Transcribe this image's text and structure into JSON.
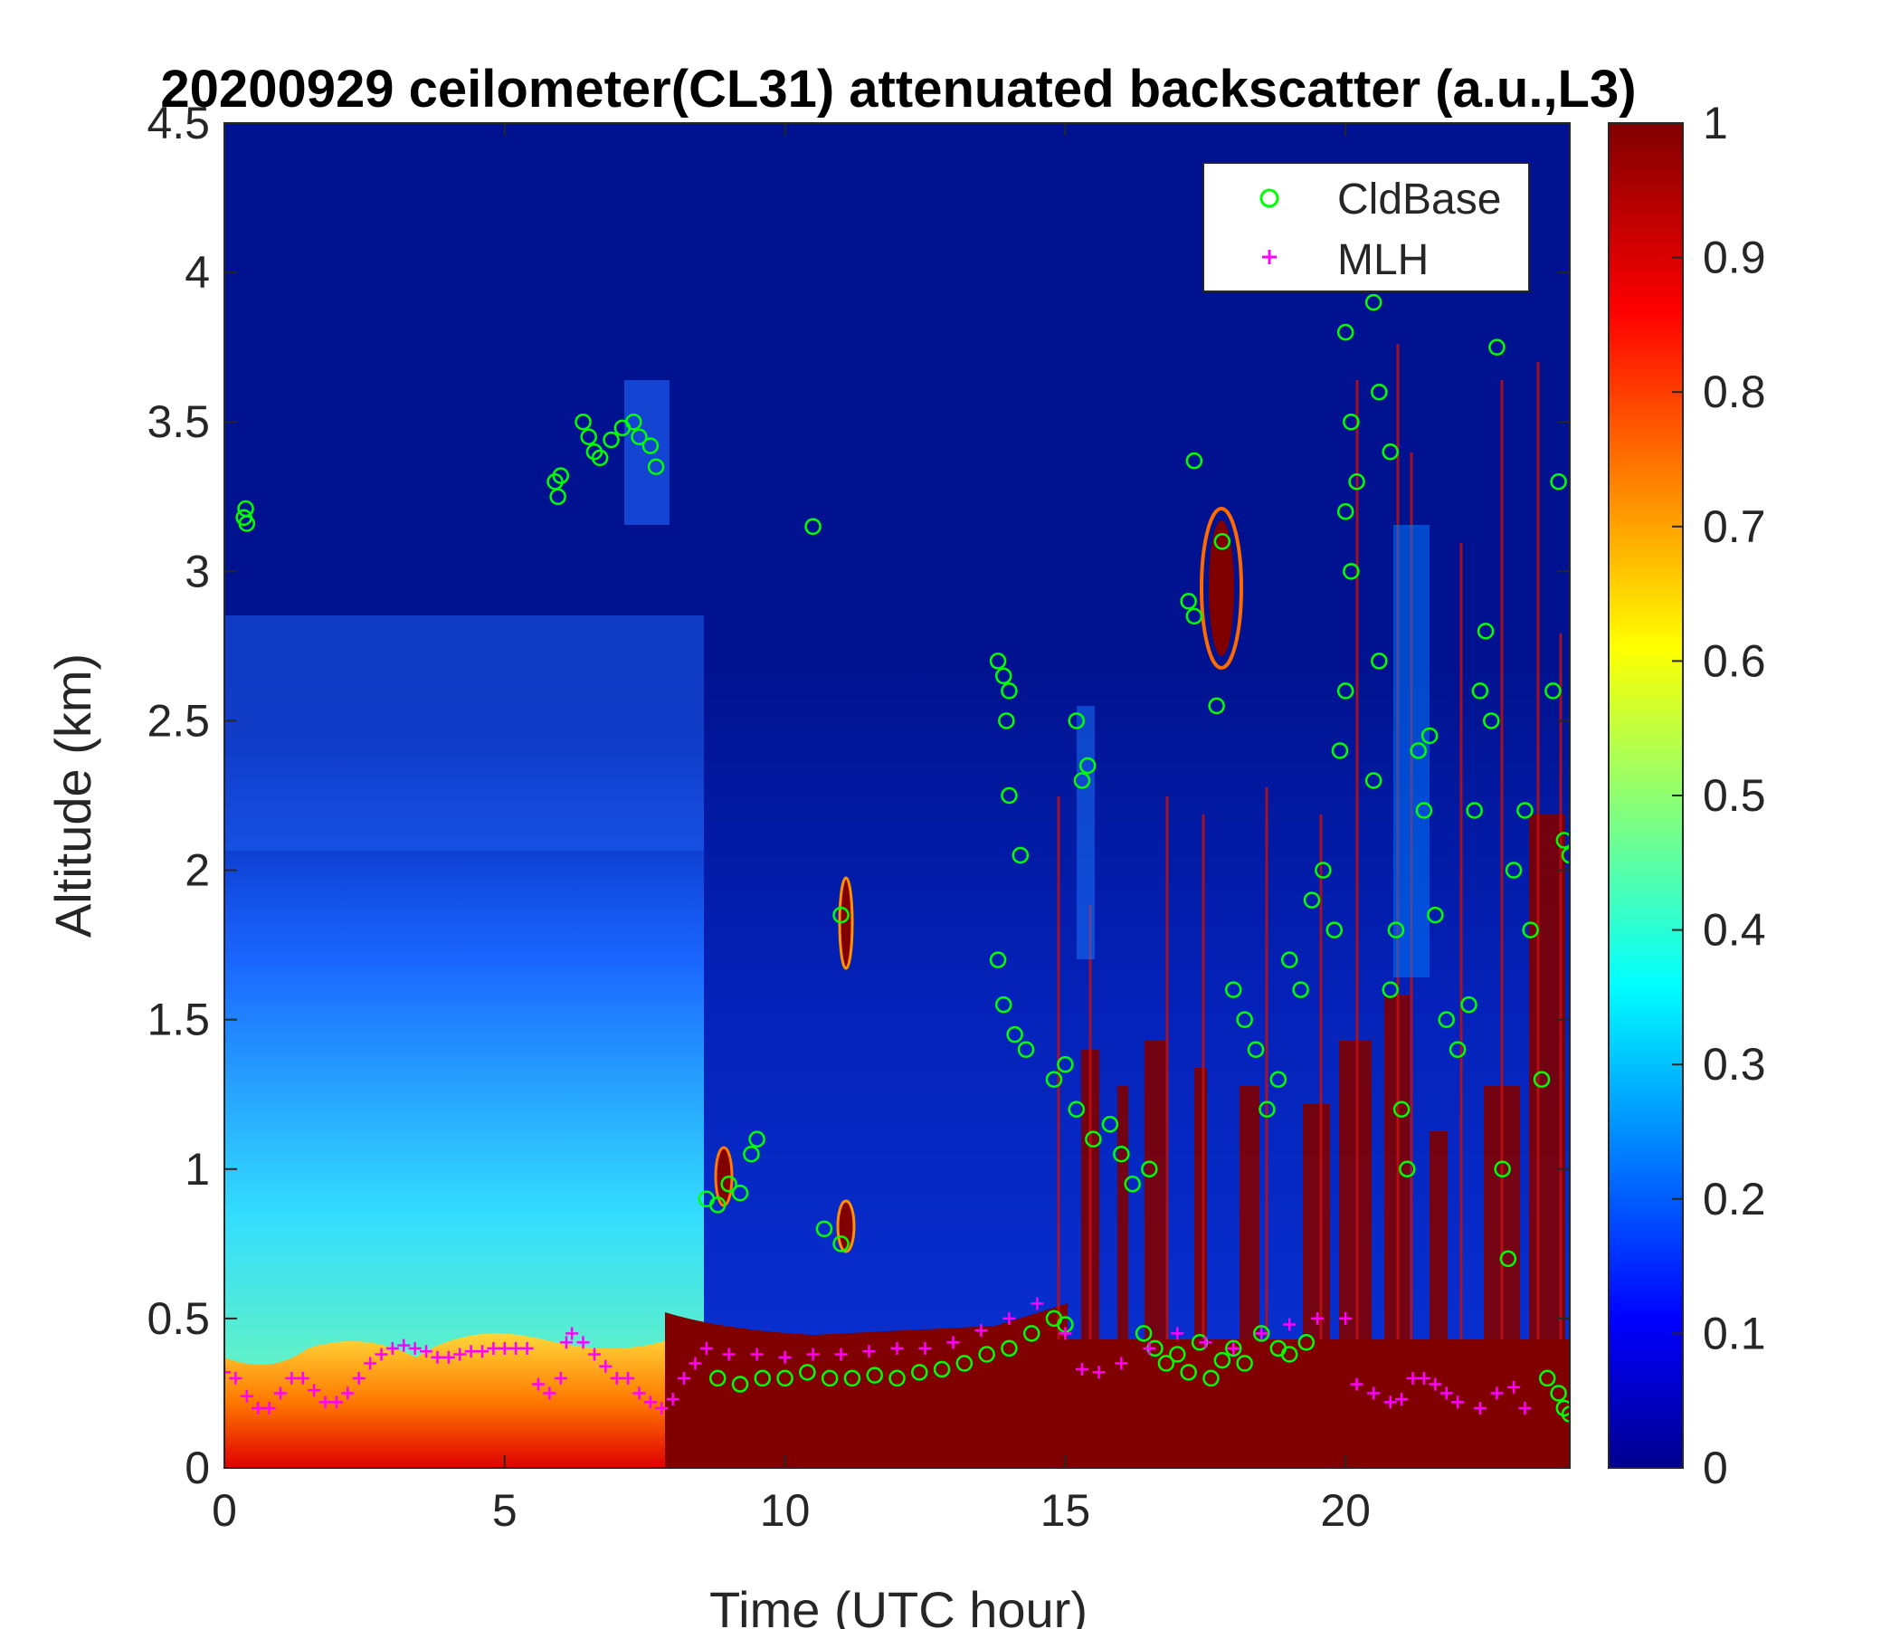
{
  "chart_data": {
    "type": "heatmap",
    "title": "20200929 ceilometer(CL31) attenuated backscatter (a.u.,L3)",
    "xlabel": "Time (UTC hour)",
    "ylabel": "Altitude (km)",
    "xlim": [
      0,
      24
    ],
    "ylim": [
      0,
      4.5
    ],
    "x_ticks": [
      "0",
      "5",
      "10",
      "15",
      "20"
    ],
    "y_ticks": [
      "0",
      "0.5",
      "1",
      "1.5",
      "2",
      "2.5",
      "3",
      "3.5",
      "4",
      "4.5"
    ],
    "colorbar": {
      "colormap": "jet",
      "range": [
        0,
        1
      ],
      "ticks": [
        "0",
        "0.1",
        "0.2",
        "0.3",
        "0.4",
        "0.5",
        "0.6",
        "0.7",
        "0.8",
        "0.9",
        "1"
      ]
    },
    "legend": {
      "placement": "top-right",
      "entries": [
        {
          "label": "CldBase",
          "marker": "circle",
          "color": "#00ff00"
        },
        {
          "label": "MLH",
          "marker": "plus",
          "color": "#ff00ff"
        }
      ]
    },
    "series": [
      {
        "name": "CldBase",
        "marker": "circle",
        "color": "#00ff00",
        "points": [
          [
            0.35,
            3.18
          ],
          [
            0.38,
            3.21
          ],
          [
            0.4,
            3.16
          ],
          [
            5.9,
            3.3
          ],
          [
            5.95,
            3.25
          ],
          [
            6.0,
            3.32
          ],
          [
            6.4,
            3.5
          ],
          [
            6.5,
            3.45
          ],
          [
            6.6,
            3.4
          ],
          [
            6.7,
            3.38
          ],
          [
            6.9,
            3.44
          ],
          [
            7.1,
            3.48
          ],
          [
            7.3,
            3.5
          ],
          [
            7.4,
            3.45
          ],
          [
            7.6,
            3.42
          ],
          [
            7.7,
            3.35
          ],
          [
            10.5,
            3.15
          ],
          [
            8.6,
            0.9
          ],
          [
            8.8,
            0.88
          ],
          [
            9.0,
            0.95
          ],
          [
            9.2,
            0.92
          ],
          [
            9.4,
            1.05
          ],
          [
            9.5,
            1.1
          ],
          [
            11.0,
            1.85
          ],
          [
            11.0,
            0.75
          ],
          [
            10.7,
            0.8
          ],
          [
            13.8,
            2.7
          ],
          [
            13.9,
            2.65
          ],
          [
            14.0,
            2.6
          ],
          [
            13.95,
            2.5
          ],
          [
            14.0,
            2.25
          ],
          [
            14.2,
            2.05
          ],
          [
            15.3,
            2.3
          ],
          [
            15.4,
            2.35
          ],
          [
            15.2,
            2.5
          ],
          [
            13.8,
            1.7
          ],
          [
            13.9,
            1.55
          ],
          [
            14.1,
            1.45
          ],
          [
            14.3,
            1.4
          ],
          [
            14.8,
            1.3
          ],
          [
            15.0,
            1.35
          ],
          [
            15.2,
            1.2
          ],
          [
            15.5,
            1.1
          ],
          [
            15.8,
            1.15
          ],
          [
            16.0,
            1.05
          ],
          [
            16.2,
            0.95
          ],
          [
            16.5,
            1.0
          ],
          [
            16.4,
            0.45
          ],
          [
            16.6,
            0.4
          ],
          [
            16.8,
            0.35
          ],
          [
            17.0,
            0.38
          ],
          [
            17.2,
            0.32
          ],
          [
            17.4,
            0.42
          ],
          [
            17.6,
            0.3
          ],
          [
            17.8,
            0.36
          ],
          [
            18.0,
            0.4
          ],
          [
            18.2,
            0.35
          ],
          [
            18.5,
            0.45
          ],
          [
            18.8,
            0.4
          ],
          [
            19.0,
            0.38
          ],
          [
            19.3,
            0.42
          ],
          [
            17.3,
            3.37
          ],
          [
            17.2,
            2.9
          ],
          [
            17.3,
            2.85
          ],
          [
            17.7,
            2.55
          ],
          [
            17.8,
            3.1
          ],
          [
            18.0,
            1.6
          ],
          [
            18.2,
            1.5
          ],
          [
            18.4,
            1.4
          ],
          [
            18.6,
            1.2
          ],
          [
            18.8,
            1.3
          ],
          [
            19.0,
            1.7
          ],
          [
            19.2,
            1.6
          ],
          [
            19.4,
            1.9
          ],
          [
            19.6,
            2.0
          ],
          [
            19.8,
            1.8
          ],
          [
            19.9,
            2.4
          ],
          [
            20.0,
            2.6
          ],
          [
            20.1,
            3.0
          ],
          [
            20.0,
            3.2
          ],
          [
            20.1,
            3.5
          ],
          [
            20.0,
            3.8
          ],
          [
            20.2,
            3.3
          ],
          [
            20.5,
            3.9
          ],
          [
            20.6,
            3.6
          ],
          [
            20.8,
            3.4
          ],
          [
            20.6,
            2.7
          ],
          [
            20.5,
            2.3
          ],
          [
            20.8,
            1.6
          ],
          [
            20.9,
            1.8
          ],
          [
            21.0,
            1.2
          ],
          [
            21.1,
            1.0
          ],
          [
            21.3,
            2.4
          ],
          [
            21.4,
            2.2
          ],
          [
            21.5,
            2.45
          ],
          [
            21.6,
            1.85
          ],
          [
            21.8,
            1.5
          ],
          [
            22.0,
            1.4
          ],
          [
            22.2,
            1.55
          ],
          [
            22.4,
            2.6
          ],
          [
            22.5,
            2.8
          ],
          [
            22.6,
            2.5
          ],
          [
            22.3,
            2.2
          ],
          [
            22.7,
            3.75
          ],
          [
            22.8,
            1.0
          ],
          [
            22.9,
            0.7
          ],
          [
            23.0,
            2.0
          ],
          [
            23.2,
            2.2
          ],
          [
            23.3,
            1.8
          ],
          [
            23.5,
            1.3
          ],
          [
            23.7,
            2.6
          ],
          [
            23.8,
            3.3
          ],
          [
            23.9,
            2.1
          ],
          [
            24.0,
            2.05
          ],
          [
            23.6,
            0.3
          ],
          [
            23.8,
            0.25
          ],
          [
            23.9,
            0.2
          ],
          [
            24.0,
            0.18
          ],
          [
            8.8,
            0.3
          ],
          [
            9.2,
            0.28
          ],
          [
            9.6,
            0.3
          ],
          [
            10.0,
            0.3
          ],
          [
            10.4,
            0.32
          ],
          [
            10.8,
            0.3
          ],
          [
            11.2,
            0.3
          ],
          [
            11.6,
            0.31
          ],
          [
            12.0,
            0.3
          ],
          [
            12.4,
            0.32
          ],
          [
            12.8,
            0.33
          ],
          [
            13.2,
            0.35
          ],
          [
            13.6,
            0.38
          ],
          [
            14.0,
            0.4
          ],
          [
            14.4,
            0.45
          ],
          [
            14.8,
            0.5
          ],
          [
            15.0,
            0.48
          ]
        ]
      },
      {
        "name": "MLH",
        "marker": "plus",
        "color": "#ff00ff",
        "points": [
          [
            0.0,
            0.32
          ],
          [
            0.2,
            0.3
          ],
          [
            0.4,
            0.24
          ],
          [
            0.6,
            0.2
          ],
          [
            0.8,
            0.2
          ],
          [
            1.0,
            0.25
          ],
          [
            1.2,
            0.3
          ],
          [
            1.4,
            0.3
          ],
          [
            1.6,
            0.26
          ],
          [
            1.8,
            0.22
          ],
          [
            2.0,
            0.22
          ],
          [
            2.2,
            0.25
          ],
          [
            2.4,
            0.3
          ],
          [
            2.6,
            0.35
          ],
          [
            2.8,
            0.38
          ],
          [
            3.0,
            0.4
          ],
          [
            3.2,
            0.41
          ],
          [
            3.4,
            0.4
          ],
          [
            3.6,
            0.39
          ],
          [
            3.8,
            0.37
          ],
          [
            4.0,
            0.37
          ],
          [
            4.2,
            0.38
          ],
          [
            4.4,
            0.39
          ],
          [
            4.6,
            0.39
          ],
          [
            4.8,
            0.4
          ],
          [
            5.0,
            0.4
          ],
          [
            5.2,
            0.4
          ],
          [
            5.4,
            0.4
          ],
          [
            5.6,
            0.28
          ],
          [
            5.8,
            0.25
          ],
          [
            6.0,
            0.3
          ],
          [
            6.1,
            0.42
          ],
          [
            6.2,
            0.45
          ],
          [
            6.4,
            0.42
          ],
          [
            6.6,
            0.38
          ],
          [
            6.8,
            0.34
          ],
          [
            7.0,
            0.3
          ],
          [
            7.2,
            0.3
          ],
          [
            7.4,
            0.25
          ],
          [
            7.6,
            0.22
          ],
          [
            7.8,
            0.2
          ],
          [
            8.0,
            0.23
          ],
          [
            8.2,
            0.3
          ],
          [
            8.4,
            0.35
          ],
          [
            8.6,
            0.4
          ],
          [
            9.0,
            0.38
          ],
          [
            9.5,
            0.38
          ],
          [
            10.0,
            0.37
          ],
          [
            10.5,
            0.38
          ],
          [
            11.0,
            0.38
          ],
          [
            11.5,
            0.39
          ],
          [
            12.0,
            0.4
          ],
          [
            12.5,
            0.4
          ],
          [
            13.0,
            0.42
          ],
          [
            13.5,
            0.46
          ],
          [
            14.0,
            0.5
          ],
          [
            14.5,
            0.55
          ],
          [
            15.0,
            0.45
          ],
          [
            15.3,
            0.33
          ],
          [
            15.6,
            0.32
          ],
          [
            16.0,
            0.35
          ],
          [
            16.5,
            0.4
          ],
          [
            17.0,
            0.45
          ],
          [
            17.5,
            0.42
          ],
          [
            18.0,
            0.4
          ],
          [
            18.5,
            0.45
          ],
          [
            19.0,
            0.48
          ],
          [
            19.5,
            0.5
          ],
          [
            20.0,
            0.5
          ],
          [
            20.2,
            0.28
          ],
          [
            20.5,
            0.25
          ],
          [
            20.8,
            0.22
          ],
          [
            21.0,
            0.23
          ],
          [
            21.2,
            0.3
          ],
          [
            21.4,
            0.3
          ],
          [
            21.6,
            0.28
          ],
          [
            21.8,
            0.25
          ],
          [
            22.0,
            0.22
          ],
          [
            22.4,
            0.2
          ],
          [
            22.7,
            0.25
          ],
          [
            23.0,
            0.27
          ],
          [
            23.2,
            0.2
          ]
        ]
      }
    ]
  }
}
